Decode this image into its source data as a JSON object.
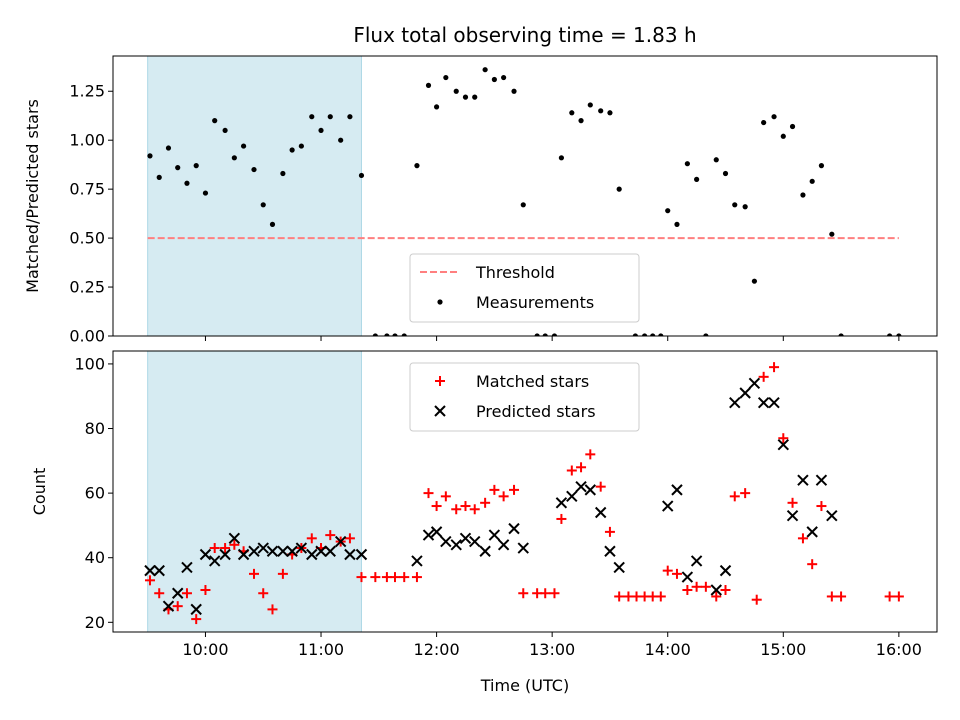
{
  "chart_data": [
    {
      "type": "scatter",
      "title": "Flux total observing time = 1.83 h",
      "xlabel": "",
      "ylabel": "Matched/Predicted stars",
      "xlim": [
        9.2,
        16.33
      ],
      "ylim": [
        0,
        1.43
      ],
      "yticks": [
        0,
        0.25,
        0.5,
        0.75,
        1.0,
        1.25
      ],
      "ytick_labels": [
        "0.00",
        "0.25",
        "0.50",
        "0.75",
        "1.00",
        "1.25"
      ],
      "xticks": [
        10,
        11,
        12,
        13,
        14,
        15,
        16
      ],
      "shaded_span": [
        9.5,
        11.35
      ],
      "shade_color": "#add8e6",
      "legend_location": "lower center",
      "threshold": {
        "name": "Threshold",
        "y": 0.5,
        "x_range": [
          9.5,
          16.0
        ],
        "color": "#ff7f7f",
        "style": "dashed"
      },
      "series": [
        {
          "name": "Measurements",
          "color": "#000000",
          "marker": "dot",
          "points": [
            [
              9.52,
              0.92
            ],
            [
              9.6,
              0.81
            ],
            [
              9.68,
              0.96
            ],
            [
              9.76,
              0.86
            ],
            [
              9.84,
              0.78
            ],
            [
              9.92,
              0.87
            ],
            [
              10.0,
              0.73
            ],
            [
              10.08,
              1.1
            ],
            [
              10.17,
              1.05
            ],
            [
              10.25,
              0.91
            ],
            [
              10.33,
              0.97
            ],
            [
              10.42,
              0.85
            ],
            [
              10.5,
              0.67
            ],
            [
              10.58,
              0.57
            ],
            [
              10.67,
              0.83
            ],
            [
              10.75,
              0.95
            ],
            [
              10.83,
              0.97
            ],
            [
              10.92,
              1.12
            ],
            [
              11.0,
              1.05
            ],
            [
              11.08,
              1.12
            ],
            [
              11.17,
              1.0
            ],
            [
              11.25,
              1.12
            ],
            [
              11.35,
              0.82
            ],
            [
              11.47,
              0.0
            ],
            [
              11.57,
              0.0
            ],
            [
              11.64,
              0.0
            ],
            [
              11.72,
              0.0
            ],
            [
              11.83,
              0.87
            ],
            [
              11.93,
              1.28
            ],
            [
              12.0,
              1.17
            ],
            [
              12.08,
              1.32
            ],
            [
              12.17,
              1.25
            ],
            [
              12.25,
              1.22
            ],
            [
              12.33,
              1.22
            ],
            [
              12.42,
              1.36
            ],
            [
              12.5,
              1.31
            ],
            [
              12.58,
              1.32
            ],
            [
              12.67,
              1.25
            ],
            [
              12.75,
              0.67
            ],
            [
              12.87,
              0.0
            ],
            [
              12.94,
              0.0
            ],
            [
              13.02,
              0.0
            ],
            [
              13.08,
              0.91
            ],
            [
              13.17,
              1.14
            ],
            [
              13.25,
              1.1
            ],
            [
              13.33,
              1.18
            ],
            [
              13.42,
              1.15
            ],
            [
              13.5,
              1.14
            ],
            [
              13.58,
              0.75
            ],
            [
              13.72,
              0.0
            ],
            [
              13.8,
              0.0
            ],
            [
              13.87,
              0.0
            ],
            [
              13.94,
              0.0
            ],
            [
              14.0,
              0.64
            ],
            [
              14.08,
              0.57
            ],
            [
              14.17,
              0.88
            ],
            [
              14.25,
              0.8
            ],
            [
              14.42,
              0.9
            ],
            [
              14.5,
              0.83
            ],
            [
              14.58,
              0.67
            ],
            [
              14.67,
              0.66
            ],
            [
              14.75,
              0.28
            ],
            [
              14.83,
              1.09
            ],
            [
              14.92,
              1.12
            ],
            [
              15.0,
              1.02
            ],
            [
              15.08,
              1.07
            ],
            [
              15.17,
              0.72
            ],
            [
              15.25,
              0.79
            ],
            [
              15.33,
              0.87
            ],
            [
              15.42,
              0.52
            ],
            [
              14.33,
              0.0
            ],
            [
              15.5,
              0.0
            ],
            [
              15.92,
              0.0
            ],
            [
              16.0,
              0.0
            ]
          ]
        }
      ]
    },
    {
      "type": "scatter",
      "title": "",
      "xlabel": "Time (UTC)",
      "ylabel": "Count",
      "xlim": [
        9.2,
        16.33
      ],
      "ylim": [
        17,
        104
      ],
      "yticks": [
        20,
        40,
        60,
        80,
        100
      ],
      "ytick_labels": [
        "20",
        "40",
        "60",
        "80",
        "100"
      ],
      "xticks": [
        10,
        11,
        12,
        13,
        14,
        15,
        16
      ],
      "xtick_labels": [
        "10:00",
        "11:00",
        "12:00",
        "13:00",
        "14:00",
        "15:00",
        "16:00"
      ],
      "shaded_span": [
        9.5,
        11.35
      ],
      "shade_color": "#add8e6",
      "legend_location": "upper center",
      "series": [
        {
          "name": "Matched stars",
          "color": "#ff0000",
          "marker": "plus",
          "points": [
            [
              9.52,
              33
            ],
            [
              9.6,
              29
            ],
            [
              9.68,
              24
            ],
            [
              9.76,
              25
            ],
            [
              9.84,
              29
            ],
            [
              9.92,
              21
            ],
            [
              10.0,
              30
            ],
            [
              10.08,
              43
            ],
            [
              10.17,
              43
            ],
            [
              10.25,
              44
            ],
            [
              10.33,
              42
            ],
            [
              10.42,
              35
            ],
            [
              10.5,
              29
            ],
            [
              10.58,
              24
            ],
            [
              10.67,
              35
            ],
            [
              10.75,
              41
            ],
            [
              10.83,
              43
            ],
            [
              10.92,
              46
            ],
            [
              11.0,
              43
            ],
            [
              11.08,
              47
            ],
            [
              11.17,
              45
            ],
            [
              11.25,
              46
            ],
            [
              11.35,
              34
            ],
            [
              11.47,
              34
            ],
            [
              11.57,
              34
            ],
            [
              11.64,
              34
            ],
            [
              11.72,
              34
            ],
            [
              11.83,
              34
            ],
            [
              11.93,
              60
            ],
            [
              12.0,
              56
            ],
            [
              12.08,
              59
            ],
            [
              12.17,
              55
            ],
            [
              12.25,
              56
            ],
            [
              12.33,
              55
            ],
            [
              12.42,
              57
            ],
            [
              12.5,
              61
            ],
            [
              12.58,
              59
            ],
            [
              12.67,
              61
            ],
            [
              12.75,
              29
            ],
            [
              12.87,
              29
            ],
            [
              12.94,
              29
            ],
            [
              13.02,
              29
            ],
            [
              13.08,
              52
            ],
            [
              13.17,
              67
            ],
            [
              13.25,
              68
            ],
            [
              13.33,
              72
            ],
            [
              13.42,
              62
            ],
            [
              13.5,
              48
            ],
            [
              13.58,
              28
            ],
            [
              13.66,
              28
            ],
            [
              13.73,
              28
            ],
            [
              13.8,
              28
            ],
            [
              13.87,
              28
            ],
            [
              13.94,
              28
            ],
            [
              14.0,
              36
            ],
            [
              14.08,
              35
            ],
            [
              14.17,
              30
            ],
            [
              14.25,
              31
            ],
            [
              14.33,
              31
            ],
            [
              14.42,
              28
            ],
            [
              14.5,
              30
            ],
            [
              14.58,
              59
            ],
            [
              14.67,
              60
            ],
            [
              14.77,
              27
            ],
            [
              14.83,
              96
            ],
            [
              14.92,
              99
            ],
            [
              15.0,
              77
            ],
            [
              15.08,
              57
            ],
            [
              15.17,
              46
            ],
            [
              15.25,
              38
            ],
            [
              15.33,
              56
            ],
            [
              15.42,
              28
            ],
            [
              15.5,
              28
            ],
            [
              15.92,
              28
            ],
            [
              16.0,
              28
            ]
          ]
        },
        {
          "name": "Predicted stars",
          "color": "#000000",
          "marker": "x",
          "points": [
            [
              9.52,
              36
            ],
            [
              9.6,
              36
            ],
            [
              9.68,
              25
            ],
            [
              9.76,
              29
            ],
            [
              9.84,
              37
            ],
            [
              9.92,
              24
            ],
            [
              10.0,
              41
            ],
            [
              10.08,
              39
            ],
            [
              10.17,
              41
            ],
            [
              10.25,
              46
            ],
            [
              10.33,
              41
            ],
            [
              10.42,
              42
            ],
            [
              10.5,
              43
            ],
            [
              10.58,
              42
            ],
            [
              10.67,
              42
            ],
            [
              10.75,
              42
            ],
            [
              10.83,
              43
            ],
            [
              10.92,
              41
            ],
            [
              11.0,
              42
            ],
            [
              11.08,
              42
            ],
            [
              11.17,
              45
            ],
            [
              11.25,
              41
            ],
            [
              11.35,
              41
            ],
            [
              11.83,
              39
            ],
            [
              11.93,
              47
            ],
            [
              12.0,
              48
            ],
            [
              12.08,
              45
            ],
            [
              12.17,
              44
            ],
            [
              12.25,
              46
            ],
            [
              12.33,
              45
            ],
            [
              12.42,
              42
            ],
            [
              12.5,
              47
            ],
            [
              12.58,
              44
            ],
            [
              12.67,
              49
            ],
            [
              12.75,
              43
            ],
            [
              13.08,
              57
            ],
            [
              13.17,
              59
            ],
            [
              13.25,
              62
            ],
            [
              13.33,
              61
            ],
            [
              13.42,
              54
            ],
            [
              13.5,
              42
            ],
            [
              13.58,
              37
            ],
            [
              14.0,
              56
            ],
            [
              14.08,
              61
            ],
            [
              14.17,
              34
            ],
            [
              14.25,
              39
            ],
            [
              14.42,
              30
            ],
            [
              14.5,
              36
            ],
            [
              14.58,
              88
            ],
            [
              14.67,
              91
            ],
            [
              14.75,
              94
            ],
            [
              14.83,
              88
            ],
            [
              14.92,
              88
            ],
            [
              15.0,
              75
            ],
            [
              15.08,
              53
            ],
            [
              15.17,
              64
            ],
            [
              15.25,
              48
            ],
            [
              15.33,
              64
            ],
            [
              15.42,
              53
            ]
          ]
        }
      ]
    }
  ]
}
